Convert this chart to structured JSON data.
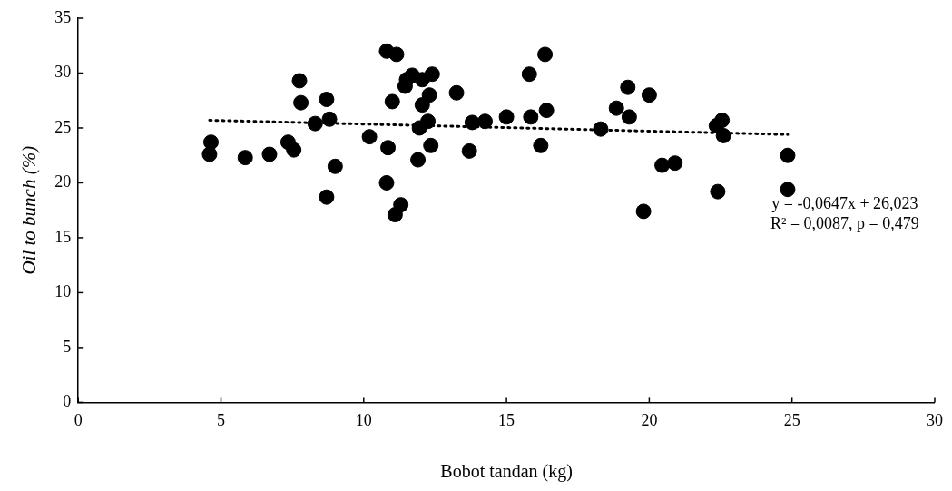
{
  "chart_data": {
    "type": "scatter",
    "xlabel": "Bobot tandan (kg)",
    "ylabel": "Oil to bunch (%)",
    "xlim": [
      0,
      30
    ],
    "xticks": [
      0,
      5,
      10,
      15,
      20,
      25,
      30
    ],
    "ylim": [
      0,
      35
    ],
    "yticks": [
      0,
      5,
      10,
      15,
      20,
      25,
      30,
      35
    ],
    "grid": false,
    "legend": false,
    "marker": "circle",
    "annotations": [
      "y = -0,0647x + 26,023",
      "R² = 0,0087, p = 0,479"
    ],
    "series": [
      {
        "color": "#000000",
        "x": [
          4.6,
          4.65,
          5.85,
          6.7,
          7.35,
          7.55,
          7.75,
          7.8,
          8.3,
          8.7,
          8.7,
          8.8,
          9.0,
          10.2,
          10.8,
          10.8,
          10.85,
          11.0,
          11.1,
          11.15,
          11.3,
          11.45,
          11.5,
          11.7,
          11.9,
          11.95,
          12.05,
          12.05,
          12.25,
          12.3,
          12.35,
          12.4,
          13.25,
          13.7,
          13.8,
          14.25,
          15.0,
          15.8,
          15.85,
          16.2,
          16.35,
          16.4,
          18.3,
          18.85,
          19.25,
          19.3,
          19.8,
          20.0,
          20.45,
          20.9,
          22.35,
          22.4,
          22.55,
          22.6,
          24.85,
          24.85
        ],
        "values": [
          22.6,
          23.7,
          22.3,
          22.6,
          23.7,
          23.0,
          29.3,
          27.3,
          25.4,
          27.6,
          18.7,
          25.8,
          21.5,
          24.2,
          32.0,
          20.0,
          23.2,
          27.4,
          17.1,
          31.7,
          18.0,
          28.8,
          29.4,
          29.8,
          22.1,
          25.0,
          29.4,
          27.1,
          25.6,
          28.0,
          23.4,
          29.9,
          28.2,
          22.9,
          25.5,
          25.6,
          26.0,
          29.9,
          26.0,
          23.4,
          31.7,
          26.6,
          24.9,
          26.8,
          28.7,
          26.0,
          17.4,
          28.0,
          21.6,
          21.8,
          25.2,
          19.2,
          25.7,
          24.3,
          22.5,
          19.4
        ]
      },
      {
        "type": "line",
        "color": "#000000",
        "line_style": "dotted",
        "marker": "none",
        "x": [
          4.6,
          24.85
        ],
        "values": [
          25.7,
          24.4
        ]
      }
    ]
  }
}
